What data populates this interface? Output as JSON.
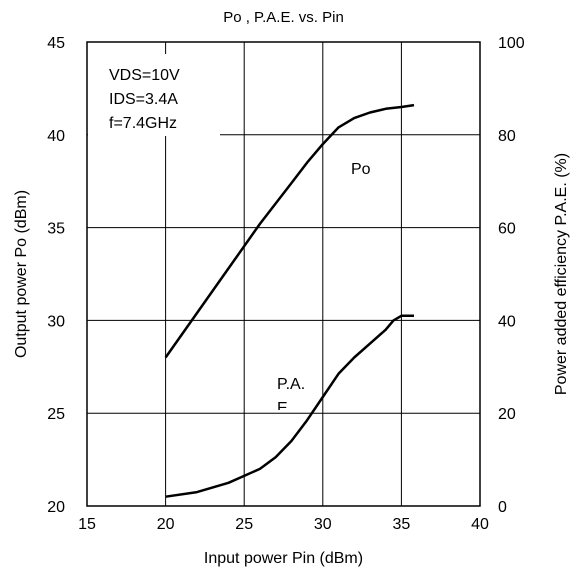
{
  "chart_data": {
    "type": "line",
    "title": "Po , P.A.E.  vs. Pin",
    "xlabel": "Input power Pin (dBm)",
    "ylabel_left": "Output power Po (dBm)",
    "ylabel_right": "Power added efficiency  P.A.E. (%)",
    "xlim": [
      15,
      40
    ],
    "ylim_left": [
      20,
      45
    ],
    "ylim_right": [
      0,
      100
    ],
    "x_ticks": [
      15,
      20,
      25,
      30,
      35,
      40
    ],
    "y_ticks_left": [
      20,
      25,
      30,
      35,
      40,
      45
    ],
    "y_ticks_right": [
      0,
      20,
      40,
      60,
      80,
      100
    ],
    "grid": true,
    "conditions": [
      "VDS=10V",
      "IDS=3.4A",
      "f=7.4GHz"
    ],
    "series": [
      {
        "name": "Po",
        "axis": "left",
        "x": [
          20,
          22,
          24,
          26,
          28,
          29,
          30,
          31,
          32,
          33,
          34,
          35,
          35.8
        ],
        "values": [
          28.0,
          30.4,
          32.8,
          35.2,
          37.4,
          38.5,
          39.5,
          40.4,
          40.9,
          41.2,
          41.4,
          41.5,
          41.6
        ]
      },
      {
        "name": "P.A.E.",
        "axis": "right",
        "x": [
          20,
          22,
          24,
          26,
          27,
          28,
          29,
          30,
          31,
          32,
          33,
          34,
          34.5,
          35,
          35.8
        ],
        "values": [
          2,
          3,
          5,
          8,
          10.5,
          14,
          18.5,
          23.5,
          28.5,
          32,
          35,
          38,
          40,
          41,
          41
        ]
      }
    ],
    "annotations": [
      {
        "text": "Po",
        "series": "Po"
      },
      {
        "text": "P.A.",
        "series": "P.A.E."
      },
      {
        "text": "E",
        "series": "P.A.E."
      }
    ]
  }
}
